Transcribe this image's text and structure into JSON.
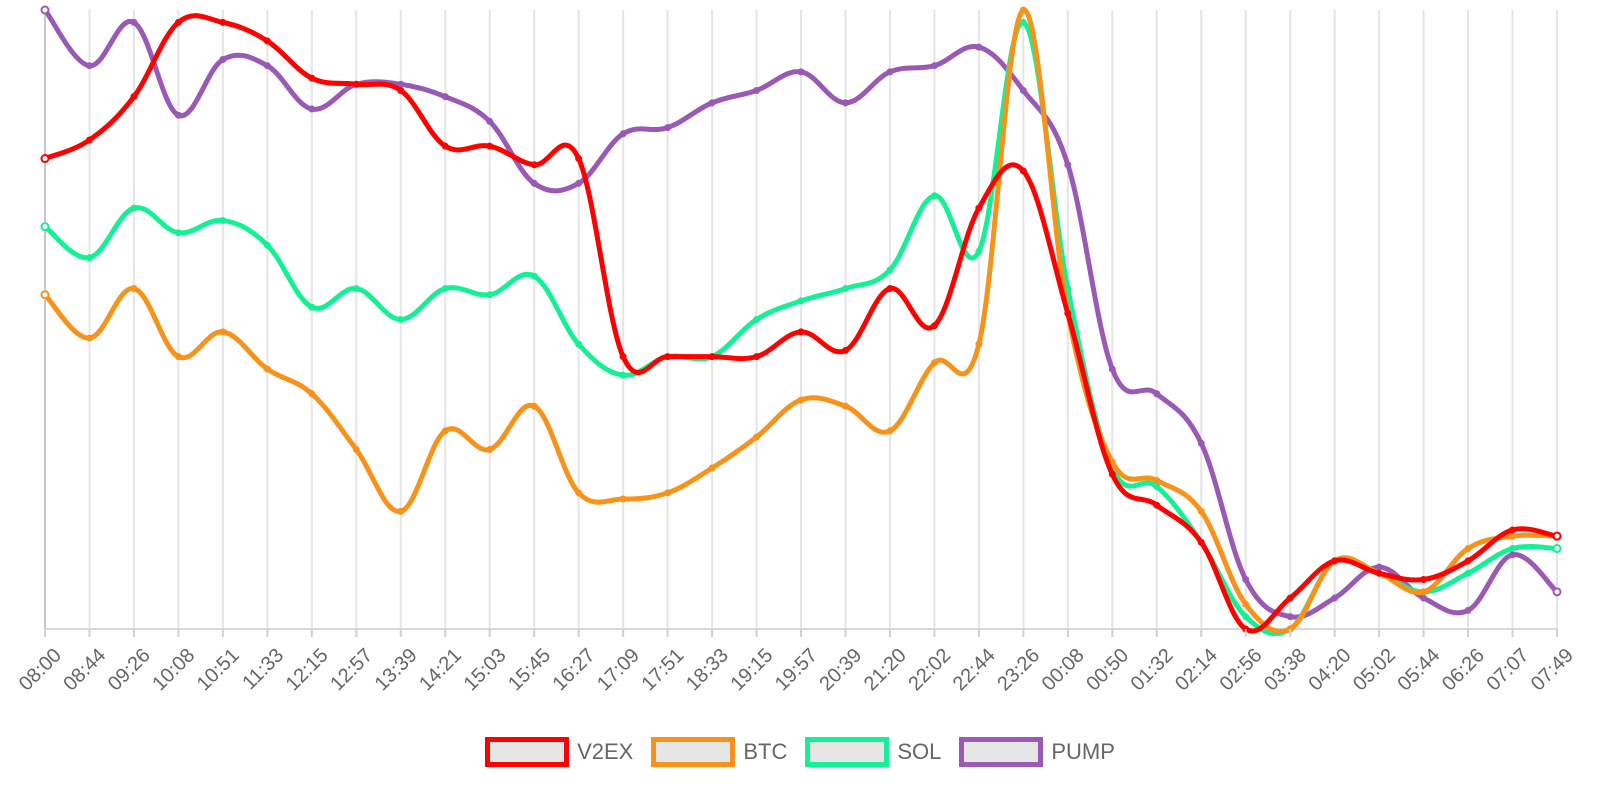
{
  "chart_data": {
    "type": "line",
    "title": "",
    "xlabel": "",
    "ylabel": "",
    "grid": {
      "vertical": true,
      "horizontal": false
    },
    "legend_position": "bottom",
    "y_range": [
      0,
      100
    ],
    "categories": [
      "08:00",
      "08:44",
      "09:26",
      "10:08",
      "10:51",
      "11:33",
      "12:15",
      "12:57",
      "13:39",
      "14:21",
      "15:03",
      "15:45",
      "16:27",
      "17:09",
      "17:51",
      "18:33",
      "19:15",
      "19:57",
      "20:39",
      "21:20",
      "22:02",
      "22:44",
      "23:26",
      "00:08",
      "00:50",
      "01:32",
      "02:14",
      "02:56",
      "03:38",
      "04:20",
      "05:02",
      "05:44",
      "06:26",
      "07:07",
      "07:49"
    ],
    "series": [
      {
        "name": "V2EX",
        "color": "#ff0000",
        "values": [
          76,
          79,
          86,
          98,
          98,
          95,
          89,
          88,
          87,
          78,
          78,
          75,
          76,
          44,
          44,
          44,
          44,
          48,
          45,
          55,
          49,
          68,
          74,
          51,
          25,
          20,
          14,
          0,
          5,
          11,
          9,
          8,
          11,
          16,
          15
        ]
      },
      {
        "name": "BTC",
        "color": "#f7931a",
        "values": [
          54,
          47,
          55,
          44,
          48,
          42,
          38,
          29,
          19,
          32,
          29,
          36,
          22,
          21,
          22,
          26,
          31,
          37,
          36,
          32,
          43,
          46,
          100,
          51,
          27,
          24,
          19,
          4,
          0,
          11,
          9,
          6,
          13,
          15,
          15
        ]
      },
      {
        "name": "SOL",
        "color": "#14f195",
        "values": [
          65,
          60,
          68,
          64,
          66,
          62,
          52,
          55,
          50,
          55,
          54,
          57,
          46,
          41,
          44,
          44,
          50,
          53,
          55,
          58,
          70,
          61,
          98,
          55,
          26,
          23,
          14,
          2,
          0,
          11,
          9,
          6,
          9,
          13,
          13
        ]
      },
      {
        "name": "PUMP",
        "color": "#9b59b6",
        "values": [
          100,
          91,
          98,
          83,
          92,
          91,
          84,
          88,
          88,
          86,
          82,
          72,
          72,
          80,
          81,
          85,
          87,
          90,
          85,
          90,
          91,
          94,
          87,
          75,
          42,
          38,
          30,
          8,
          2,
          5,
          10,
          5,
          3,
          12,
          6
        ]
      }
    ]
  }
}
